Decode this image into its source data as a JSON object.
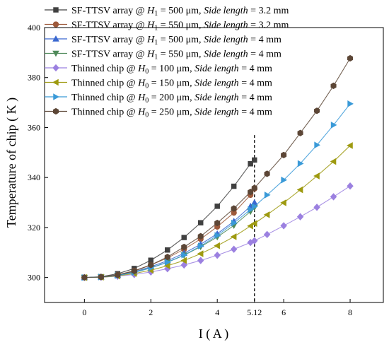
{
  "chart_data": {
    "type": "line",
    "xlabel": "I ( A )",
    "ylabel": "Temperature of chip ( K )",
    "xlim": [
      -1.2,
      9.0
    ],
    "ylim": [
      290,
      400
    ],
    "x_ticks": [
      0,
      2,
      4,
      5.12,
      6,
      8
    ],
    "x_tick_labels": [
      "0",
      "2",
      "4",
      "5.12",
      "6",
      "8"
    ],
    "y_ticks": [
      300,
      320,
      340,
      360,
      380,
      400
    ],
    "y_tick_labels": [
      "300",
      "320",
      "340",
      "360",
      "380",
      "400"
    ],
    "reference_line": {
      "x": 5.12,
      "style": "dashed"
    },
    "legend_position": "top-left",
    "series": [
      {
        "legend": {
          "prefix": "SF-TTSV array @ ",
          "var": "H",
          "sub": "1",
          "mid": " = 500 μm, ",
          "side": "Side length",
          "suffix": " = 3.2 mm"
        },
        "color": "#404040",
        "marker": "square",
        "x": [
          0,
          0.5,
          1,
          1.5,
          2,
          2.5,
          3,
          3.5,
          4,
          4.5,
          5,
          5.12
        ],
        "y": [
          300,
          300.3,
          301.5,
          303.6,
          306.9,
          311,
          316,
          321.9,
          328.5,
          336.5,
          345.5,
          347
        ]
      },
      {
        "legend": {
          "prefix": "SF-TTSV array @ ",
          "var": "H",
          "sub": "1",
          "mid": " = 550 μm, ",
          "side": "Side length",
          "suffix": " = 3.2 mm"
        },
        "color": "#9e5a3c",
        "marker": "circle",
        "x": [
          0,
          0.5,
          1,
          1.5,
          2,
          2.5,
          3,
          3.5,
          4,
          4.5,
          5,
          5.12
        ],
        "y": [
          300,
          300.2,
          301.1,
          302.7,
          305,
          307.8,
          311.3,
          315.4,
          320.3,
          325.9,
          333,
          335.5
        ]
      },
      {
        "legend": {
          "prefix": "SF-TTSV array @ ",
          "var": "H",
          "sub": "1",
          "mid": " = 500 μm, ",
          "side": "Side length",
          "suffix": " = 4 mm"
        },
        "color": "#3a68d0",
        "marker": "triangle-up",
        "x": [
          0,
          0.5,
          1,
          1.5,
          2,
          2.5,
          3,
          3.5,
          4,
          4.5,
          5,
          5.12
        ],
        "y": [
          300,
          300.2,
          300.9,
          302.3,
          304.3,
          306.7,
          309.7,
          313.3,
          317.5,
          322.5,
          328.5,
          330
        ]
      },
      {
        "legend": {
          "prefix": "SF-TTSV array @ ",
          "var": "H",
          "sub": "1",
          "mid": " = 550 μm, ",
          "side": "Side length",
          "suffix": " = 4 mm"
        },
        "color": "#4f8a5a",
        "marker": "triangle-down",
        "x": [
          0,
          0.5,
          1,
          1.5,
          2,
          2.5,
          3,
          3.5,
          4,
          4.5,
          5,
          5.12
        ],
        "y": [
          300,
          300.2,
          300.8,
          302.1,
          303.9,
          306.1,
          308.9,
          312.3,
          316.2,
          320.8,
          326.4,
          328
        ]
      },
      {
        "legend": {
          "prefix": "Thinned chip @ ",
          "var": "H",
          "sub": "0",
          "mid": " = 100 μm, ",
          "side": "Side length",
          "suffix": " = 4 mm"
        },
        "color": "#9b80e0",
        "marker": "diamond",
        "x": [
          0,
          0.5,
          1,
          1.5,
          2,
          2.5,
          3,
          3.5,
          4,
          4.5,
          5,
          5.12,
          5.5,
          6,
          6.5,
          7,
          7.5,
          8
        ],
        "y": [
          300,
          300.1,
          300.5,
          301.2,
          302.2,
          303.5,
          305,
          306.8,
          308.9,
          311.3,
          314,
          314.7,
          317.2,
          320.7,
          324.3,
          328.1,
          332.3,
          336.6
        ]
      },
      {
        "legend": {
          "prefix": "Thinned chip @ ",
          "var": "H",
          "sub": "0",
          "mid": " = 150 μm, ",
          "side": "Side length",
          "suffix": " = 4 mm"
        },
        "color": "#9e9a10",
        "marker": "triangle-left",
        "x": [
          0,
          0.5,
          1,
          1.5,
          2,
          2.5,
          3,
          3.5,
          4,
          4.5,
          5,
          5.12,
          5.5,
          6,
          6.5,
          7,
          7.5,
          8
        ],
        "y": [
          300,
          300.1,
          300.6,
          301.6,
          302.9,
          304.7,
          306.8,
          309.5,
          312.7,
          316.3,
          320.6,
          321.6,
          325.1,
          329.9,
          335.1,
          340.6,
          346.4,
          352.8
        ]
      },
      {
        "legend": {
          "prefix": "Thinned chip @ ",
          "var": "H",
          "sub": "0",
          "mid": " = 200 μm, ",
          "side": "Side length",
          "suffix": " = 4 mm"
        },
        "color": "#3a9ad8",
        "marker": "triangle-right",
        "x": [
          0,
          0.5,
          1,
          1.5,
          2,
          2.5,
          3,
          3.5,
          4,
          4.5,
          5,
          5.12,
          5.5,
          6,
          6.5,
          7,
          7.5,
          8
        ],
        "y": [
          300,
          300.2,
          300.8,
          302,
          303.8,
          306.1,
          309,
          312.6,
          316.8,
          321.8,
          327.2,
          328.4,
          333,
          339,
          345.6,
          353,
          361,
          369.5
        ]
      },
      {
        "legend": {
          "prefix": "Thinned chip @ ",
          "var": "H",
          "sub": "0",
          "mid": " = 250 μm, ",
          "side": "Side length",
          "suffix": " = 4 mm"
        },
        "color": "#5c4636",
        "marker": "hexagon",
        "x": [
          0,
          0.5,
          1,
          1.5,
          2,
          2.5,
          3,
          3.5,
          4,
          4.5,
          5,
          5.12,
          5.5,
          6,
          6.5,
          7,
          7.5,
          8
        ],
        "y": [
          300,
          300.2,
          301,
          302.6,
          305,
          308.2,
          312.2,
          316.5,
          321.8,
          327.6,
          334.2,
          335.8,
          341.5,
          349,
          357.8,
          366.7,
          376.7,
          387.7
        ]
      }
    ]
  }
}
